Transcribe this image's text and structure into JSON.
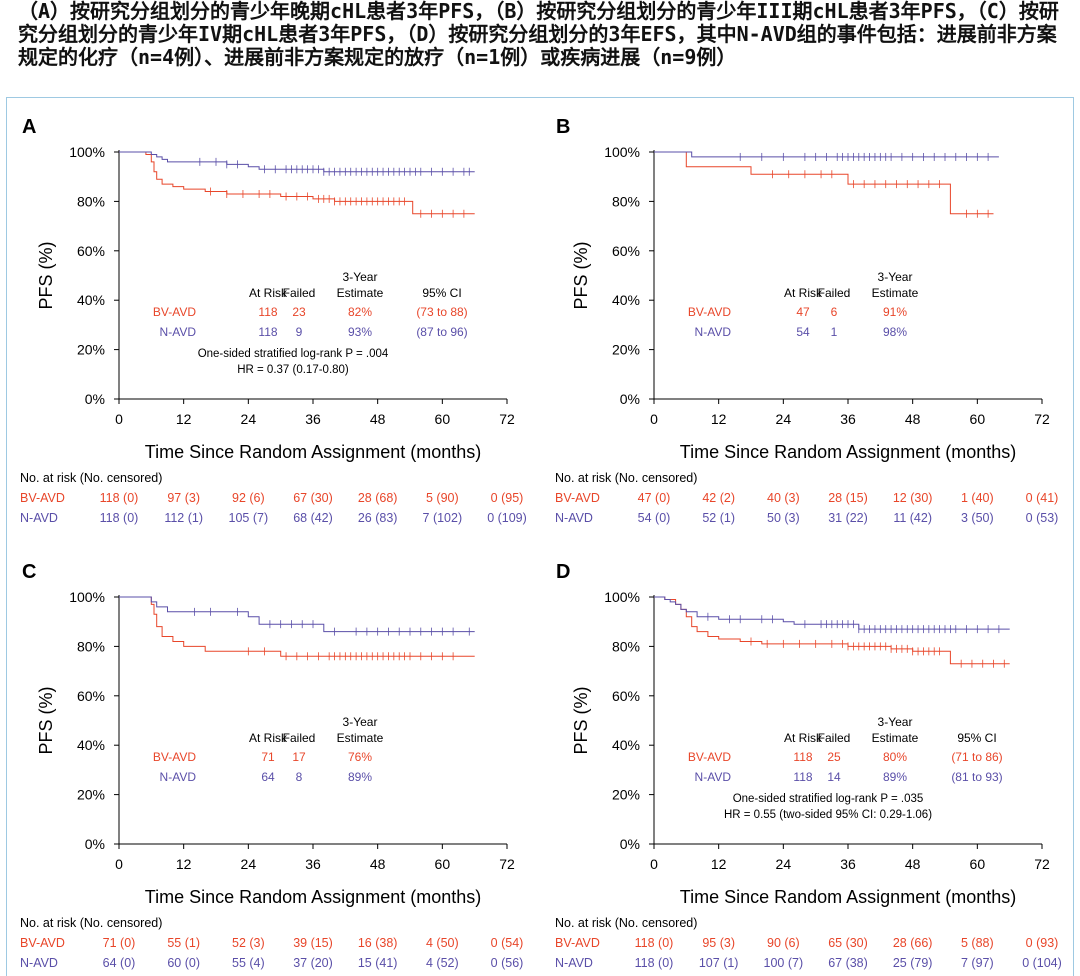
{
  "caption": "（A）按研究分组划分的青少年晚期cHL患者3年PFS，（B）按研究分组划分的青少年III期cHL患者3年PFS，（C）按研究分组划分的青少年IV期cHL患者3年PFS，（D）按研究分组划分的3年EFS，其中N-AVD组的事件包括：进展前非方案规定的化疗（n=4例）、进展前非方案规定的放疗（n=1例）或疾病进展（n=9例）",
  "colors": {
    "bv": "#e8462a",
    "n": "#5a4fa8",
    "axis": "#000000",
    "frame": "#9ec9e2"
  },
  "chart_data": [
    {
      "panel": "A",
      "type": "line",
      "xlabel": "Time Since Random Assignment (months)",
      "ylabel": "PFS (%)",
      "xlim": [
        0,
        72
      ],
      "ylim": [
        0,
        100
      ],
      "xticks": [
        "0",
        "12",
        "24",
        "36",
        "48",
        "60",
        "72"
      ],
      "yticks": [
        "0%",
        "20%",
        "40%",
        "60%",
        "80%",
        "100%"
      ],
      "series": [
        {
          "name": "BV-AVD",
          "color": "#e8462a",
          "x": [
            0,
            5,
            6,
            6.5,
            7,
            8,
            10,
            12,
            16,
            20,
            26,
            30,
            36,
            40,
            44,
            48,
            54,
            54.5,
            66
          ],
          "y": [
            100,
            99,
            96,
            92,
            89,
            87,
            86,
            85,
            84,
            83,
            83,
            82,
            81,
            80,
            80,
            80,
            80,
            75,
            75
          ],
          "censor_x": [
            17,
            20,
            23,
            26,
            28,
            31,
            33,
            35,
            37,
            38,
            39,
            40,
            41,
            42,
            43,
            44,
            45,
            46,
            47,
            48,
            49,
            50,
            51,
            52,
            53,
            56,
            58,
            60,
            62,
            64
          ]
        },
        {
          "name": "N-AVD",
          "color": "#5a4fa8",
          "x": [
            0,
            4,
            6,
            7,
            8,
            9,
            12,
            20,
            24,
            26,
            30,
            36,
            38,
            66
          ],
          "y": [
            100,
            100,
            99,
            98,
            97,
            96,
            96,
            95,
            94,
            93,
            93,
            93,
            92,
            92
          ],
          "censor_x": [
            15,
            18,
            20,
            22,
            27,
            29,
            31,
            32,
            33,
            34,
            35,
            36,
            37,
            38,
            39,
            40,
            41,
            42,
            43,
            44,
            45,
            46,
            47,
            48,
            49,
            50,
            51,
            52,
            53,
            54,
            55,
            56,
            58,
            60,
            62,
            64,
            65
          ]
        }
      ],
      "table": {
        "headers": [
          "At Risk",
          "Failed",
          "3-Year\nEstimate",
          "95% CI"
        ],
        "rows": [
          {
            "label": "BV-AVD",
            "values": [
              "118",
              "23",
              "82%",
              "(73 to 88)"
            ]
          },
          {
            "label": "N-AVD",
            "values": [
              "118",
              "9",
              "93%",
              "(87 to 96)"
            ]
          }
        ],
        "notes": [
          "One-sided stratified log-rank P = .004",
          "HR = 0.37 (0.17-0.80)"
        ]
      },
      "at_risk": {
        "title": "No. at risk (No. censored)",
        "rows": [
          {
            "label": "BV-AVD",
            "values": [
              "118 (0)",
              "97 (3)",
              "92 (6)",
              "67 (30)",
              "28 (68)",
              "5 (90)",
              "0 (95)"
            ]
          },
          {
            "label": "N-AVD",
            "values": [
              "118 (0)",
              "112 (1)",
              "105 (7)",
              "68 (42)",
              "26 (83)",
              "7 (102)",
              "0 (109)"
            ]
          }
        ]
      }
    },
    {
      "panel": "B",
      "type": "line",
      "xlabel": "Time Since Random Assignment (months)",
      "ylabel": "PFS (%)",
      "xlim": [
        0,
        72
      ],
      "ylim": [
        0,
        100
      ],
      "xticks": [
        "0",
        "12",
        "24",
        "36",
        "48",
        "60",
        "72"
      ],
      "yticks": [
        "0%",
        "20%",
        "40%",
        "60%",
        "80%",
        "100%"
      ],
      "series": [
        {
          "name": "BV-AVD",
          "color": "#e8462a",
          "x": [
            0,
            5,
            6,
            17,
            18,
            35,
            36,
            54,
            55,
            63
          ],
          "y": [
            100,
            100,
            94,
            94,
            91,
            91,
            87,
            87,
            75,
            75
          ],
          "censor_x": [
            22,
            25,
            28,
            31,
            33,
            37,
            39,
            41,
            43,
            45,
            47,
            49,
            51,
            53,
            58,
            60,
            62
          ]
        },
        {
          "name": "N-AVD",
          "color": "#5a4fa8",
          "x": [
            0,
            6,
            7,
            64
          ],
          "y": [
            100,
            100,
            98,
            98
          ],
          "censor_x": [
            16,
            20,
            24,
            28,
            30,
            32,
            34,
            35,
            36,
            37,
            38,
            39,
            40,
            41,
            42,
            43,
            44,
            46,
            48,
            50,
            52,
            54,
            56,
            58,
            60,
            62
          ]
        }
      ],
      "table": {
        "headers": [
          "At Risk",
          "Failed",
          "3-Year\nEstimate"
        ],
        "rows": [
          {
            "label": "BV-AVD",
            "values": [
              "47",
              "6",
              "91%"
            ]
          },
          {
            "label": "N-AVD",
            "values": [
              "54",
              "1",
              "98%"
            ]
          }
        ],
        "notes": []
      },
      "at_risk": {
        "title": "No. at risk (No. censored)",
        "rows": [
          {
            "label": "BV-AVD",
            "values": [
              "47 (0)",
              "42 (2)",
              "40 (3)",
              "28 (15)",
              "12 (30)",
              "1 (40)",
              "0 (41)"
            ]
          },
          {
            "label": "N-AVD",
            "values": [
              "54 (0)",
              "52 (1)",
              "50 (3)",
              "31 (22)",
              "11 (42)",
              "3 (50)",
              "0 (53)"
            ]
          }
        ]
      }
    },
    {
      "panel": "C",
      "type": "line",
      "xlabel": "Time Since Random Assignment (months)",
      "ylabel": "PFS (%)",
      "xlim": [
        0,
        72
      ],
      "ylim": [
        0,
        100
      ],
      "xticks": [
        "0",
        "12",
        "24",
        "36",
        "48",
        "60",
        "72"
      ],
      "yticks": [
        "0%",
        "20%",
        "40%",
        "60%",
        "80%",
        "100%"
      ],
      "series": [
        {
          "name": "BV-AVD",
          "color": "#e8462a",
          "x": [
            0,
            6,
            6.5,
            7,
            8,
            10,
            12,
            16,
            30,
            66
          ],
          "y": [
            100,
            97,
            93,
            88,
            84,
            82,
            80,
            78,
            76,
            76
          ],
          "censor_x": [
            24,
            27,
            31,
            33,
            35,
            37,
            39,
            40,
            41,
            42,
            43,
            44,
            45,
            46,
            47,
            48,
            49,
            50,
            51,
            52,
            53,
            54,
            56,
            58,
            60,
            62
          ]
        },
        {
          "name": "N-AVD",
          "color": "#5a4fa8",
          "x": [
            0,
            5,
            6,
            7,
            9,
            20,
            24,
            26,
            38,
            66
          ],
          "y": [
            100,
            100,
            98,
            96,
            94,
            94,
            92,
            89,
            86,
            86
          ],
          "censor_x": [
            14,
            17,
            22,
            28,
            30,
            32,
            34,
            36,
            40,
            44,
            46,
            48,
            50,
            52,
            54,
            56,
            58,
            60,
            62,
            65
          ]
        }
      ],
      "table": {
        "headers": [
          "At Risk",
          "Failed",
          "3-Year\nEstimate"
        ],
        "rows": [
          {
            "label": "BV-AVD",
            "values": [
              "71",
              "17",
              "76%"
            ]
          },
          {
            "label": "N-AVD",
            "values": [
              "64",
              "8",
              "89%"
            ]
          }
        ],
        "notes": []
      },
      "at_risk": {
        "title": "No. at risk (No. censored)",
        "rows": [
          {
            "label": "BV-AVD",
            "values": [
              "71 (0)",
              "55 (1)",
              "52 (3)",
              "39 (15)",
              "16 (38)",
              "4 (50)",
              "0 (54)"
            ]
          },
          {
            "label": "N-AVD",
            "values": [
              "64 (0)",
              "60 (0)",
              "55 (4)",
              "37 (20)",
              "15 (41)",
              "4 (52)",
              "0 (56)"
            ]
          }
        ]
      }
    },
    {
      "panel": "D",
      "type": "line",
      "xlabel": "Time Since Random Assignment (months)",
      "ylabel": "PFS (%)",
      "xlim": [
        0,
        72
      ],
      "ylim": [
        0,
        100
      ],
      "xticks": [
        "0",
        "12",
        "24",
        "36",
        "48",
        "60",
        "72"
      ],
      "yticks": [
        "0%",
        "20%",
        "40%",
        "60%",
        "80%",
        "100%"
      ],
      "series": [
        {
          "name": "BV-AVD",
          "color": "#e8462a",
          "x": [
            0,
            2,
            4,
            5,
            6,
            7,
            8,
            10,
            12,
            16,
            20,
            28,
            36,
            44,
            48,
            54,
            55,
            66
          ],
          "y": [
            100,
            99,
            97,
            95,
            92,
            88,
            86,
            84,
            83,
            82,
            81,
            81,
            80,
            79,
            78,
            78,
            73,
            73
          ],
          "censor_x": [
            18,
            21,
            24,
            27,
            30,
            33,
            35,
            36,
            37,
            38,
            39,
            40,
            41,
            42,
            43,
            44,
            45,
            46,
            47,
            48,
            49,
            50,
            51,
            52,
            53,
            57,
            59,
            61,
            63,
            65
          ]
        },
        {
          "name": "N-AVD",
          "color": "#5a4fa8",
          "x": [
            0,
            2,
            3,
            4,
            5,
            6,
            8,
            12,
            24,
            26,
            30,
            36,
            38,
            66
          ],
          "y": [
            100,
            99,
            98,
            97,
            95,
            94,
            92,
            91,
            90,
            89,
            89,
            89,
            87,
            87
          ],
          "censor_x": [
            10,
            14,
            16,
            20,
            22,
            28,
            31,
            32,
            33,
            34,
            35,
            36,
            37,
            38,
            39,
            40,
            41,
            42,
            43,
            44,
            45,
            46,
            47,
            48,
            49,
            50,
            51,
            52,
            53,
            54,
            55,
            56,
            58,
            60,
            62,
            64
          ]
        }
      ],
      "table": {
        "headers": [
          "At Risk",
          "Failed",
          "3-Year\nEstimate",
          "95% CI"
        ],
        "rows": [
          {
            "label": "BV-AVD",
            "values": [
              "118",
              "25",
              "80%",
              "(71 to 86)"
            ]
          },
          {
            "label": "N-AVD",
            "values": [
              "118",
              "14",
              "89%",
              "(81 to 93)"
            ]
          }
        ],
        "notes": [
          "One-sided stratified log-rank P = .035",
          "HR = 0.55 (two-sided 95% CI: 0.29-1.06)"
        ]
      },
      "at_risk": {
        "title": "No. at risk (No. censored)",
        "rows": [
          {
            "label": "BV-AVD",
            "values": [
              "118 (0)",
              "95 (3)",
              "90 (6)",
              "65 (30)",
              "28 (66)",
              "5 (88)",
              "0 (93)"
            ]
          },
          {
            "label": "N-AVD",
            "values": [
              "118 (0)",
              "107 (1)",
              "100 (7)",
              "67 (38)",
              "25 (79)",
              "7 (97)",
              "0 (104)"
            ]
          }
        ]
      }
    }
  ]
}
